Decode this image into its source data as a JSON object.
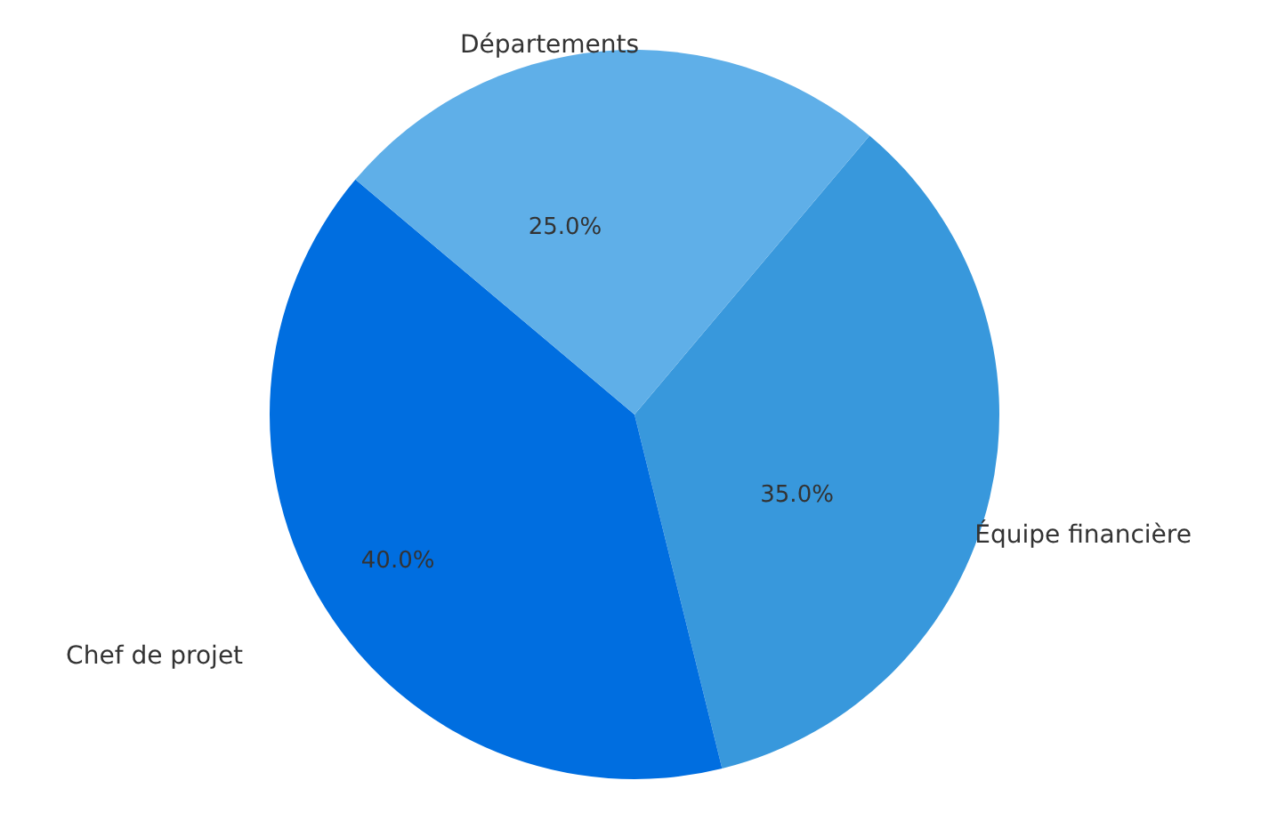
{
  "chart_data": {
    "type": "pie",
    "categories": [
      "Équipe financière",
      "Chef de projet",
      "Départements"
    ],
    "values": [
      35,
      40,
      25
    ],
    "colors": [
      "#3898dc",
      "#006ee0",
      "#5fafe8"
    ],
    "value_labels": [
      "35.0%",
      "40.0%",
      "25.0%"
    ]
  }
}
